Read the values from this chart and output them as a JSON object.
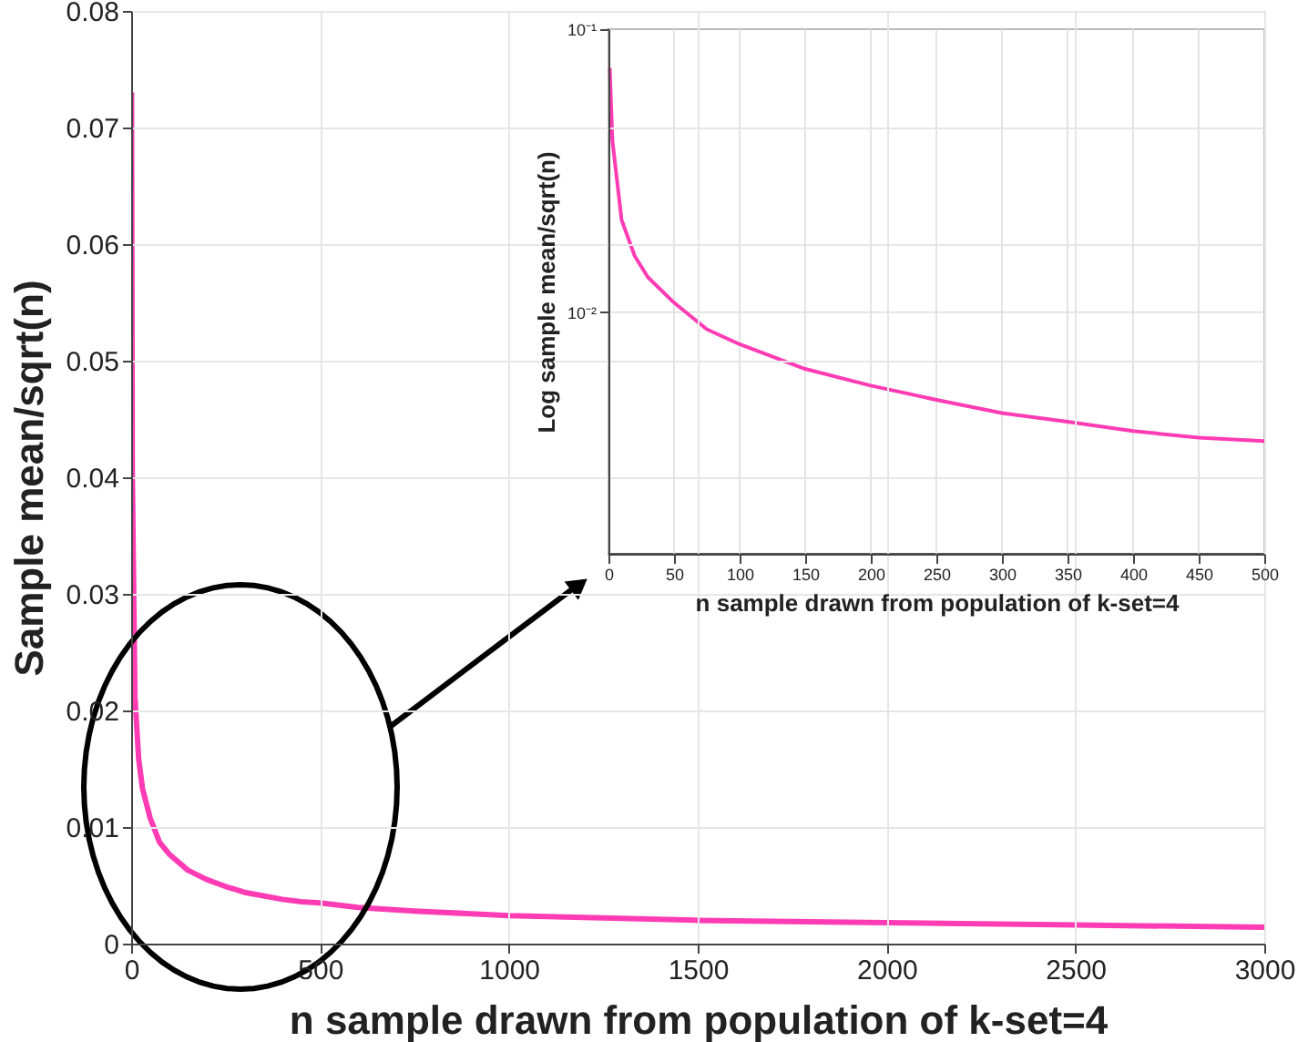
{
  "chart_data": [
    {
      "type": "line",
      "xlabel": "n sample drawn from population of k-set=4",
      "ylabel": "Sample mean/sqrt(n)",
      "xlim": [
        0,
        3000
      ],
      "xticks": [
        0,
        500,
        1000,
        1500,
        2000,
        2500,
        3000
      ],
      "ylim": [
        0,
        0.08
      ],
      "yticks": [
        0,
        0.01,
        0.02,
        0.03,
        0.04,
        0.05,
        0.06,
        0.07,
        0.08
      ],
      "grid": true,
      "x": [
        1,
        3,
        10,
        20,
        30,
        50,
        75,
        100,
        150,
        200,
        250,
        300,
        350,
        400,
        450,
        500,
        600,
        750,
        1000,
        1500,
        2000,
        2500,
        3000
      ],
      "series": [
        {
          "color": "#ff3cb4",
          "values": [
            0.073,
            0.0404,
            0.0212,
            0.0158,
            0.0133,
            0.0108,
            0.0087,
            0.0077,
            0.0063,
            0.0055,
            0.0049,
            0.0044,
            0.0041,
            0.0038,
            0.0036,
            0.0035,
            0.0031,
            0.0028,
            0.0024,
            0.002,
            0.0018,
            0.0016,
            0.0014
          ]
        }
      ]
    },
    {
      "type": "line",
      "xlabel": "n sample drawn from population of k-set=4",
      "ylabel": "Log sample mean/sqrt(n)",
      "xlim": [
        0,
        500
      ],
      "xticks": [
        0,
        50,
        100,
        150,
        200,
        250,
        300,
        350,
        400,
        450,
        500
      ],
      "ylim": [
        0.0014,
        0.1
      ],
      "yticks": [
        {
          "value": 0.1,
          "label": "10⁻¹"
        },
        {
          "value": 0.01,
          "label": "10⁻²"
        }
      ],
      "log": "y",
      "grid": true,
      "x": [
        1,
        3,
        10,
        20,
        30,
        50,
        75,
        100,
        150,
        200,
        250,
        300,
        350,
        400,
        450,
        500
      ],
      "series": [
        {
          "color": "#ff3cb4",
          "values": [
            0.073,
            0.0404,
            0.0212,
            0.0158,
            0.0133,
            0.0108,
            0.0087,
            0.0077,
            0.0063,
            0.0055,
            0.0049,
            0.0044,
            0.0041,
            0.0038,
            0.0036,
            0.0035
          ]
        }
      ]
    }
  ]
}
